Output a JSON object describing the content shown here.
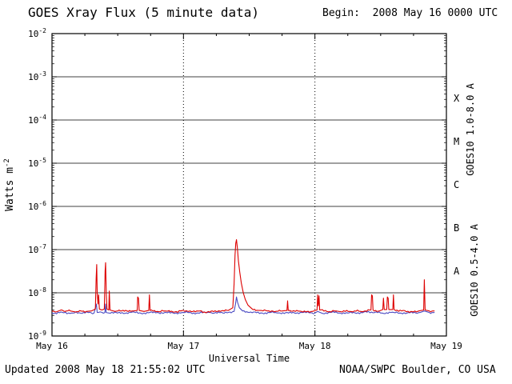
{
  "header": {
    "title": "GOES Xray Flux (5 minute data)",
    "begin_label": "Begin:  2008 May 16 0000 UTC"
  },
  "footer": {
    "updated": "Updated 2008 May 18 21:55:02 UTC",
    "source": "NOAA/SWPC Boulder, CO USA"
  },
  "chart_data": {
    "type": "line",
    "title": "GOES Xray Flux (5 minute data)",
    "xlabel": "Universal Time",
    "ylabel": "Watts m-2",
    "ylabel_parts": {
      "base": "Watts m",
      "sup": "-2"
    },
    "x_unit": "days since 2008 May 16 0000 UTC",
    "xlim": [
      0,
      3
    ],
    "ylim_log10": [
      -9,
      -2
    ],
    "x_ticks": [
      "May 16",
      "May 17",
      "May 18",
      "May 19"
    ],
    "y_tick_exponents": [
      -2,
      -3,
      -4,
      -5,
      -6,
      -7,
      -8,
      -9
    ],
    "grid": {
      "horizontal": "solid black at each decade",
      "vertical": "dotted black at day boundaries"
    },
    "flare_classes": [
      {
        "label": "X",
        "band": [
          -4,
          -3
        ]
      },
      {
        "label": "M",
        "band": [
          -5,
          -4
        ]
      },
      {
        "label": "C",
        "band": [
          -6,
          -5
        ]
      },
      {
        "label": "B",
        "band": [
          -7,
          -6
        ]
      },
      {
        "label": "A",
        "band": [
          -8,
          -7
        ]
      }
    ],
    "series": [
      {
        "name": "GOES10 1.0-8.0 A",
        "color": "#dd0000",
        "points": [
          [
            0.0,
            3.8e-09
          ],
          [
            0.03,
            3.6e-09
          ],
          [
            0.06,
            3.9e-09
          ],
          [
            0.1,
            3.7e-09
          ],
          [
            0.14,
            3.8e-09
          ],
          [
            0.18,
            3.6e-09
          ],
          [
            0.22,
            3.8e-09
          ],
          [
            0.26,
            3.7e-09
          ],
          [
            0.3,
            3.8e-09
          ],
          [
            0.33,
            4.2e-09
          ],
          [
            0.336,
            2.2e-08
          ],
          [
            0.34,
            4.5e-08
          ],
          [
            0.344,
            1e-08
          ],
          [
            0.35,
            5.5e-09
          ],
          [
            0.355,
            9e-09
          ],
          [
            0.36,
            4.2e-09
          ],
          [
            0.38,
            4e-09
          ],
          [
            0.398,
            4.2e-09
          ],
          [
            0.404,
            3.2e-08
          ],
          [
            0.408,
            5e-08
          ],
          [
            0.413,
            9e-09
          ],
          [
            0.418,
            4.2e-09
          ],
          [
            0.432,
            4e-09
          ],
          [
            0.436,
            1.1e-08
          ],
          [
            0.441,
            4e-09
          ],
          [
            0.48,
            3.7e-09
          ],
          [
            0.53,
            3.8e-09
          ],
          [
            0.58,
            3.7e-09
          ],
          [
            0.62,
            3.8e-09
          ],
          [
            0.648,
            3.9e-09
          ],
          [
            0.652,
            8e-09
          ],
          [
            0.658,
            7.5e-09
          ],
          [
            0.663,
            3.9e-09
          ],
          [
            0.7,
            3.7e-09
          ],
          [
            0.736,
            3.9e-09
          ],
          [
            0.741,
            9e-09
          ],
          [
            0.746,
            3.9e-09
          ],
          [
            0.8,
            3.7e-09
          ],
          [
            0.86,
            3.8e-09
          ],
          [
            0.92,
            3.6e-09
          ],
          [
            0.98,
            3.8e-09
          ],
          [
            1.04,
            3.7e-09
          ],
          [
            1.1,
            3.8e-09
          ],
          [
            1.16,
            3.6e-09
          ],
          [
            1.22,
            3.8e-09
          ],
          [
            1.28,
            3.7e-09
          ],
          [
            1.34,
            3.9e-09
          ],
          [
            1.375,
            4.5e-09
          ],
          [
            1.385,
            1.6e-08
          ],
          [
            1.392,
            7.5e-08
          ],
          [
            1.398,
            1.4e-07
          ],
          [
            1.403,
            1.7e-07
          ],
          [
            1.41,
            1.1e-07
          ],
          [
            1.418,
            5.5e-08
          ],
          [
            1.428,
            3e-08
          ],
          [
            1.44,
            1.7e-08
          ],
          [
            1.455,
            1e-08
          ],
          [
            1.47,
            7e-09
          ],
          [
            1.49,
            5.2e-09
          ],
          [
            1.52,
            4.3e-09
          ],
          [
            1.58,
            3.9e-09
          ],
          [
            1.64,
            3.8e-09
          ],
          [
            1.7,
            3.7e-09
          ],
          [
            1.75,
            3.8e-09
          ],
          [
            1.787,
            3.9e-09
          ],
          [
            1.792,
            6.5e-09
          ],
          [
            1.797,
            3.9e-09
          ],
          [
            1.85,
            3.7e-09
          ],
          [
            1.92,
            3.8e-09
          ],
          [
            1.98,
            3.7e-09
          ],
          [
            2.016,
            4e-09
          ],
          [
            2.021,
            9e-09
          ],
          [
            2.026,
            5e-09
          ],
          [
            2.031,
            8.5e-09
          ],
          [
            2.036,
            4e-09
          ],
          [
            2.09,
            3.7e-09
          ],
          [
            2.16,
            3.8e-09
          ],
          [
            2.23,
            3.7e-09
          ],
          [
            2.3,
            3.8e-09
          ],
          [
            2.37,
            3.7e-09
          ],
          [
            2.426,
            4e-09
          ],
          [
            2.431,
            9e-09
          ],
          [
            2.437,
            8.5e-09
          ],
          [
            2.442,
            4e-09
          ],
          [
            2.49,
            3.8e-09
          ],
          [
            2.516,
            4.1e-09
          ],
          [
            2.521,
            7.5e-09
          ],
          [
            2.527,
            4.1e-09
          ],
          [
            2.546,
            4.1e-09
          ],
          [
            2.551,
            8e-09
          ],
          [
            2.557,
            7.5e-09
          ],
          [
            2.562,
            4.1e-09
          ],
          [
            2.592,
            4.1e-09
          ],
          [
            2.597,
            9e-09
          ],
          [
            2.602,
            4.1e-09
          ],
          [
            2.66,
            3.8e-09
          ],
          [
            2.73,
            3.7e-09
          ],
          [
            2.79,
            3.8e-09
          ],
          [
            2.827,
            4e-09
          ],
          [
            2.832,
            2e-08
          ],
          [
            2.838,
            4e-09
          ],
          [
            2.87,
            3.8e-09
          ],
          [
            2.91,
            3.8e-09
          ]
        ]
      },
      {
        "name": "GOES10 0.5-4.0 A",
        "color": "#4a4ac2",
        "points": [
          [
            0.0,
            3.4e-09
          ],
          [
            0.08,
            3.5e-09
          ],
          [
            0.16,
            3.4e-09
          ],
          [
            0.24,
            3.5e-09
          ],
          [
            0.32,
            3.4e-09
          ],
          [
            0.338,
            5.5e-09
          ],
          [
            0.344,
            3.5e-09
          ],
          [
            0.402,
            3.5e-09
          ],
          [
            0.407,
            5.5e-09
          ],
          [
            0.412,
            3.5e-09
          ],
          [
            0.5,
            3.4e-09
          ],
          [
            0.6,
            3.5e-09
          ],
          [
            0.7,
            3.4e-09
          ],
          [
            0.8,
            3.5e-09
          ],
          [
            0.9,
            3.4e-09
          ],
          [
            1.0,
            3.5e-09
          ],
          [
            1.1,
            3.4e-09
          ],
          [
            1.2,
            3.5e-09
          ],
          [
            1.3,
            3.4e-09
          ],
          [
            1.385,
            3.7e-09
          ],
          [
            1.396,
            5.5e-09
          ],
          [
            1.403,
            8e-09
          ],
          [
            1.412,
            6e-09
          ],
          [
            1.425,
            4.5e-09
          ],
          [
            1.45,
            3.8e-09
          ],
          [
            1.5,
            3.5e-09
          ],
          [
            1.6,
            3.4e-09
          ],
          [
            1.7,
            3.5e-09
          ],
          [
            1.8,
            3.4e-09
          ],
          [
            1.9,
            3.5e-09
          ],
          [
            2.0,
            3.4e-09
          ],
          [
            2.02,
            3.7e-09
          ],
          [
            2.05,
            3.4e-09
          ],
          [
            2.15,
            3.5e-09
          ],
          [
            2.25,
            3.4e-09
          ],
          [
            2.35,
            3.5e-09
          ],
          [
            2.43,
            3.6e-09
          ],
          [
            2.5,
            3.4e-09
          ],
          [
            2.6,
            3.5e-09
          ],
          [
            2.7,
            3.4e-09
          ],
          [
            2.8,
            3.5e-09
          ],
          [
            2.832,
            3.8e-09
          ],
          [
            2.87,
            3.5e-09
          ],
          [
            2.91,
            3.5e-09
          ]
        ]
      }
    ]
  }
}
